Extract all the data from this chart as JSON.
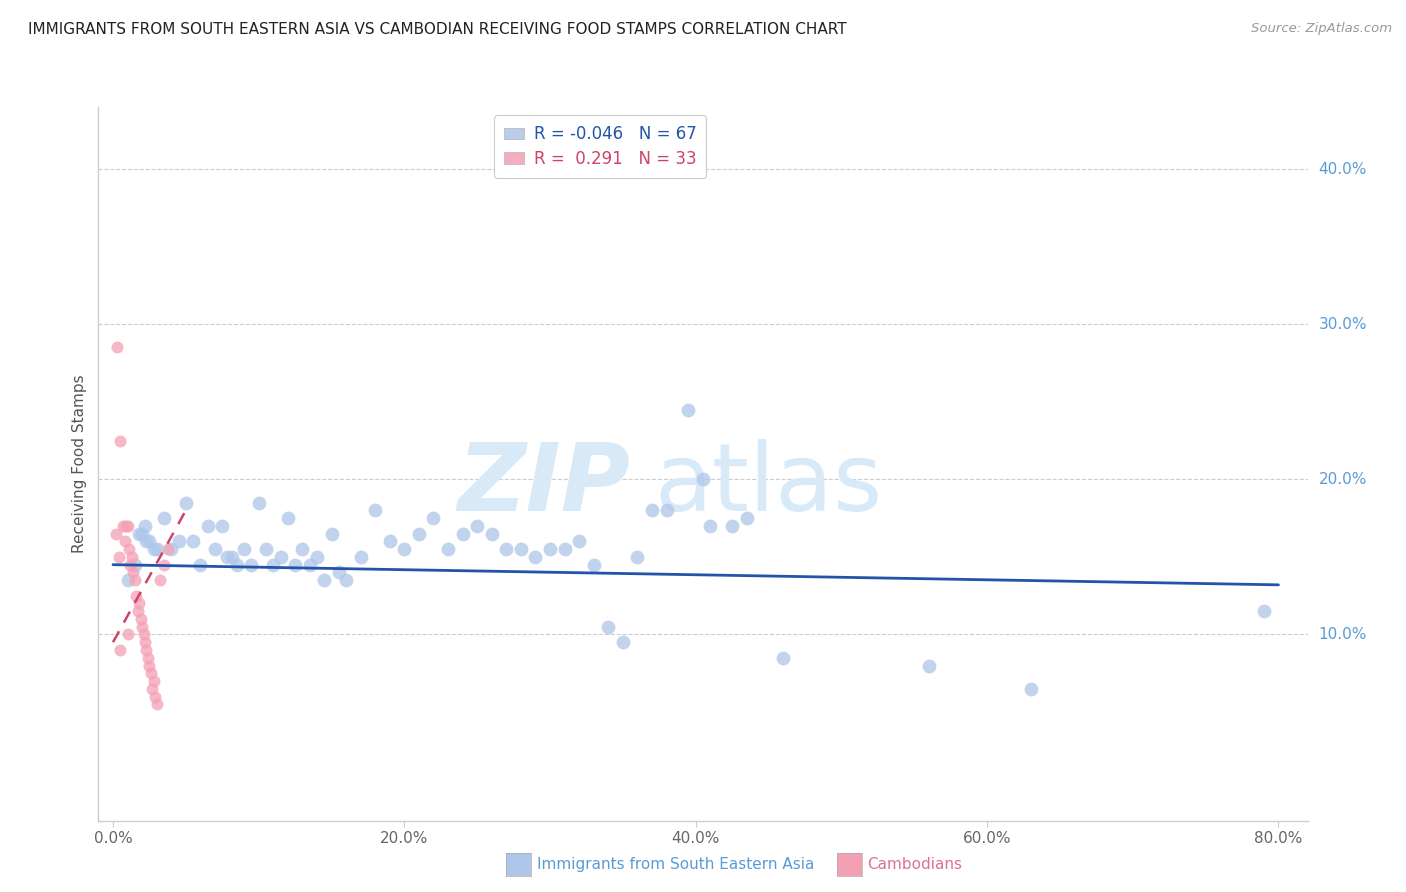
{
  "title": "IMMIGRANTS FROM SOUTH EASTERN ASIA VS CAMBODIAN RECEIVING FOOD STAMPS CORRELATION CHART",
  "source": "Source: ZipAtlas.com",
  "ylabel": "Receiving Food Stamps",
  "x_tick_labels": [
    "0.0%",
    "20.0%",
    "40.0%",
    "60.0%",
    "80.0%"
  ],
  "x_tick_values": [
    0,
    20,
    40,
    60,
    80
  ],
  "y_tick_labels_right": [
    "10.0%",
    "20.0%",
    "30.0%",
    "40.0%"
  ],
  "y_tick_values": [
    10,
    20,
    30,
    40
  ],
  "xlim": [
    -1,
    82
  ],
  "ylim": [
    -2,
    44
  ],
  "blue_color": "#aec6e8",
  "pink_color": "#f4a0b4",
  "trend_blue_color": "#2255aa",
  "trend_pink_color": "#cc4466",
  "watermark_color": "#d8eaf8",
  "watermark_text_zip": "ZIP",
  "watermark_text_atlas": "atlas",
  "blue_dots": [
    [
      1.0,
      13.5
    ],
    [
      1.5,
      14.5
    ],
    [
      1.8,
      16.5
    ],
    [
      2.0,
      16.5
    ],
    [
      2.2,
      17.0
    ],
    [
      2.5,
      16.0
    ],
    [
      2.8,
      15.5
    ],
    [
      3.0,
      15.5
    ],
    [
      3.5,
      17.5
    ],
    [
      4.0,
      15.5
    ],
    [
      4.5,
      16.0
    ],
    [
      5.0,
      18.5
    ],
    [
      5.5,
      16.0
    ],
    [
      6.0,
      14.5
    ],
    [
      6.5,
      17.0
    ],
    [
      7.0,
      15.5
    ],
    [
      7.5,
      17.0
    ],
    [
      7.8,
      15.0
    ],
    [
      8.2,
      15.0
    ],
    [
      8.5,
      14.5
    ],
    [
      9.0,
      15.5
    ],
    [
      9.5,
      14.5
    ],
    [
      10.0,
      18.5
    ],
    [
      10.5,
      15.5
    ],
    [
      11.0,
      14.5
    ],
    [
      11.5,
      15.0
    ],
    [
      12.0,
      17.5
    ],
    [
      12.5,
      14.5
    ],
    [
      13.0,
      15.5
    ],
    [
      13.5,
      14.5
    ],
    [
      14.0,
      15.0
    ],
    [
      14.5,
      13.5
    ],
    [
      15.0,
      16.5
    ],
    [
      15.5,
      14.0
    ],
    [
      16.0,
      13.5
    ],
    [
      17.0,
      15.0
    ],
    [
      18.0,
      18.0
    ],
    [
      19.0,
      16.0
    ],
    [
      20.0,
      15.5
    ],
    [
      21.0,
      16.5
    ],
    [
      22.0,
      17.5
    ],
    [
      23.0,
      15.5
    ],
    [
      24.0,
      16.5
    ],
    [
      25.0,
      17.0
    ],
    [
      26.0,
      16.5
    ],
    [
      27.0,
      15.5
    ],
    [
      28.0,
      15.5
    ],
    [
      29.0,
      15.0
    ],
    [
      30.0,
      15.5
    ],
    [
      31.0,
      15.5
    ],
    [
      32.0,
      16.0
    ],
    [
      33.0,
      14.5
    ],
    [
      34.0,
      10.5
    ],
    [
      35.0,
      9.5
    ],
    [
      36.0,
      15.0
    ],
    [
      37.0,
      18.0
    ],
    [
      38.0,
      18.0
    ],
    [
      39.5,
      24.5
    ],
    [
      40.5,
      20.0
    ],
    [
      41.0,
      17.0
    ],
    [
      42.5,
      17.0
    ],
    [
      43.5,
      17.5
    ],
    [
      46.0,
      8.5
    ],
    [
      56.0,
      8.0
    ],
    [
      63.0,
      6.5
    ],
    [
      79.0,
      11.5
    ],
    [
      2.3,
      16.0
    ]
  ],
  "pink_dots": [
    [
      0.3,
      28.5
    ],
    [
      0.5,
      22.5
    ],
    [
      0.7,
      17.0
    ],
    [
      0.8,
      16.0
    ],
    [
      0.9,
      17.0
    ],
    [
      1.0,
      17.0
    ],
    [
      1.1,
      15.5
    ],
    [
      1.2,
      14.5
    ],
    [
      1.3,
      15.0
    ],
    [
      1.4,
      14.0
    ],
    [
      1.5,
      13.5
    ],
    [
      1.6,
      12.5
    ],
    [
      1.7,
      11.5
    ],
    [
      1.8,
      12.0
    ],
    [
      1.9,
      11.0
    ],
    [
      2.0,
      10.5
    ],
    [
      2.1,
      10.0
    ],
    [
      2.2,
      9.5
    ],
    [
      2.3,
      9.0
    ],
    [
      2.4,
      8.5
    ],
    [
      2.5,
      8.0
    ],
    [
      2.6,
      7.5
    ],
    [
      2.7,
      6.5
    ],
    [
      2.8,
      7.0
    ],
    [
      2.9,
      6.0
    ],
    [
      3.0,
      5.5
    ],
    [
      3.2,
      13.5
    ],
    [
      3.5,
      14.5
    ],
    [
      3.8,
      15.5
    ],
    [
      0.4,
      15.0
    ],
    [
      0.2,
      16.5
    ],
    [
      0.5,
      9.0
    ],
    [
      1.0,
      10.0
    ]
  ],
  "blue_trend_x": [
    0,
    80
  ],
  "blue_trend_y": [
    14.5,
    13.2
  ],
  "pink_trend_x": [
    0,
    5.0
  ],
  "pink_trend_y": [
    9.5,
    18.0
  ],
  "dot_size_blue": 100,
  "dot_size_pink": 75,
  "legend_r_blue": "R = -0.046",
  "legend_n_blue": "N = 67",
  "legend_r_pink": "R =  0.291",
  "legend_n_pink": "N = 33",
  "bottom_label_blue": "Immigrants from South Eastern Asia",
  "bottom_label_pink": "Cambodians"
}
